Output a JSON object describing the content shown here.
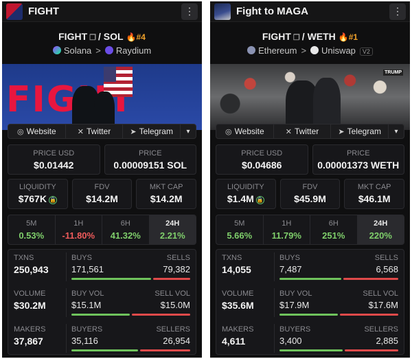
{
  "left": {
    "title": "FIGHT",
    "pair_base": "FIGHT",
    "pair_sep": "/",
    "pair_quote": "SOL",
    "rank": "#4",
    "chain": "Solana",
    "dex": "Raydium",
    "banner_text": "FIGHT",
    "links": {
      "website": "Website",
      "twitter": "Twitter",
      "telegram": "Telegram"
    },
    "price_usd_label": "PRICE USD",
    "price_usd": "$0.01442",
    "price_label": "PRICE",
    "price_native": "0.00009151 SOL",
    "liquidity_label": "LIQUIDITY",
    "liquidity": "$767K",
    "fdv_label": "FDV",
    "fdv": "$14.2M",
    "mktcap_label": "MKT CAP",
    "mktcap": "$14.2M",
    "tabs": [
      {
        "label": "5M",
        "value": "0.53%",
        "dir": "pos"
      },
      {
        "label": "1H",
        "value": "-11.80%",
        "dir": "neg"
      },
      {
        "label": "6H",
        "value": "41.32%",
        "dir": "pos"
      },
      {
        "label": "24H",
        "value": "2.21%",
        "dir": "pos"
      }
    ],
    "txns_label": "TXNS",
    "txns": "250,943",
    "buys_label": "BUYS",
    "buys": "171,561",
    "sells_label": "SELLS",
    "sells": "79,382",
    "volume_label": "VOLUME",
    "volume": "$30.2M",
    "buyvol_label": "BUY VOL",
    "buyvol": "$15.1M",
    "sellvol_label": "SELL VOL",
    "sellvol": "$15.0M",
    "makers_label": "MAKERS",
    "makers": "37,867",
    "buyers_label": "BUYERS",
    "buyers": "35,116",
    "sellers_label": "SELLERS",
    "sellers": "26,954",
    "bars": {
      "txns": 0.68,
      "volume": 0.5,
      "makers": 0.57
    }
  },
  "right": {
    "title": "Fight to MAGA",
    "pair_base": "FIGHT",
    "pair_sep": "/",
    "pair_quote": "WETH",
    "rank": "#1",
    "chain": "Ethereum",
    "dex": "Uniswap",
    "dex_version": "V2",
    "banner_tag": "TRUMP",
    "links": {
      "website": "Website",
      "twitter": "Twitter",
      "telegram": "Telegram"
    },
    "price_usd_label": "PRICE USD",
    "price_usd": "$0.04686",
    "price_label": "PRICE",
    "price_native": "0.00001373 WETH",
    "liquidity_label": "LIQUIDITY",
    "liquidity": "$1.4M",
    "fdv_label": "FDV",
    "fdv": "$45.9M",
    "mktcap_label": "MKT CAP",
    "mktcap": "$46.1M",
    "tabs": [
      {
        "label": "5M",
        "value": "5.66%",
        "dir": "pos"
      },
      {
        "label": "1H",
        "value": "11.79%",
        "dir": "pos"
      },
      {
        "label": "6H",
        "value": "251%",
        "dir": "pos"
      },
      {
        "label": "24H",
        "value": "220%",
        "dir": "pos"
      }
    ],
    "txns_label": "TXNS",
    "txns": "14,055",
    "buys_label": "BUYS",
    "buys": "7,487",
    "sells_label": "SELLS",
    "sells": "6,568",
    "volume_label": "VOLUME",
    "volume": "$35.6M",
    "buyvol_label": "BUY VOL",
    "buyvol": "$17.9M",
    "sellvol_label": "SELL VOL",
    "sellvol": "$17.6M",
    "makers_label": "MAKERS",
    "makers": "4,611",
    "buyers_label": "BUYERS",
    "buyers": "3,400",
    "sellers_label": "SELLERS",
    "sellers": "2,885",
    "bars": {
      "txns": 0.53,
      "volume": 0.5,
      "makers": 0.54
    }
  },
  "colors": {
    "positive": "#7fcf6b",
    "negative": "#ef5b5b",
    "rank": "#f0a12a",
    "panel_bg": "#0f0f10"
  }
}
